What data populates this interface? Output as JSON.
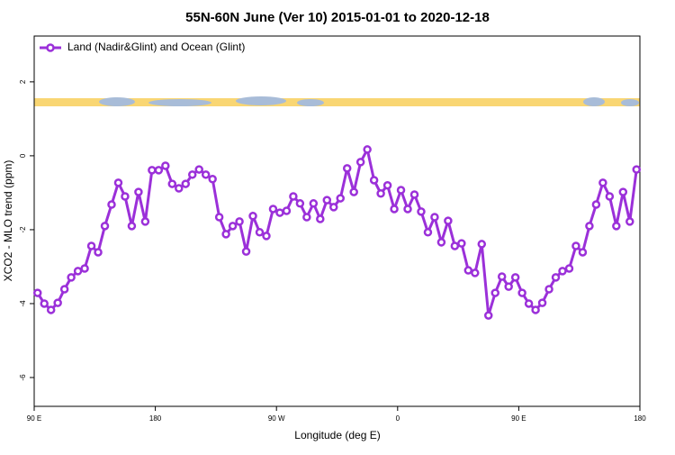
{
  "chart_data": {
    "type": "line",
    "title": "55N-60N June (Ver 10)   2015-01-01 to 2020-12-18",
    "x_label": "Longitude (deg E)",
    "y_label": "XCO2 - MLO trend (ppm)",
    "x": [
      92.5,
      97.5,
      102.5,
      107.5,
      112.5,
      117.5,
      122.5,
      127.5,
      132.5,
      137.5,
      142.5,
      147.5,
      152.5,
      157.5,
      162.5,
      167.5,
      172.5,
      177.5,
      182.5,
      187.5,
      192.5,
      197.5,
      202.5,
      207.5,
      212.5,
      217.5,
      222.5,
      227.5,
      232.5,
      237.5,
      242.5,
      247.5,
      252.5,
      257.5,
      262.5,
      267.5,
      272.5,
      277.5,
      282.5,
      287.5,
      292.5,
      297.5,
      302.5,
      307.5,
      312.5,
      317.5,
      322.5,
      327.5,
      332.5,
      337.5,
      342.5,
      347.5,
      352.5,
      357.5,
      362.5,
      367.5,
      372.5,
      377.5,
      382.5,
      387.5,
      392.5,
      397.5,
      402.5,
      407.5,
      412.5,
      417.5,
      422.5,
      427.5,
      432.5,
      437.5,
      442.5,
      447.5,
      452.5,
      457.5,
      462.5,
      467.5,
      472.5,
      477.5,
      482.5,
      487.5,
      492.5,
      497.5,
      502.5,
      507.5,
      512.5,
      517.5,
      522.5,
      527.5,
      532.5,
      537.5
    ],
    "series": [
      {
        "name": "Land (Nadir&Glint) and Ocean (Glint)",
        "color": "#9b30d9",
        "values": [
          -3.71,
          -4.0,
          -4.17,
          -3.98,
          -3.61,
          -3.29,
          -3.12,
          -3.05,
          -2.44,
          -2.61,
          -1.9,
          -1.32,
          -0.73,
          -1.1,
          -1.9,
          -0.98,
          -1.78,
          -0.39,
          -0.39,
          -0.27,
          -0.76,
          -0.88,
          -0.76,
          -0.51,
          -0.37,
          -0.51,
          -0.63,
          -1.66,
          -2.12,
          -1.9,
          -1.78,
          -2.59,
          -1.63,
          -2.07,
          -2.17,
          -1.44,
          -1.54,
          -1.49,
          -1.1,
          -1.29,
          -1.66,
          -1.29,
          -1.71,
          -1.2,
          -1.39,
          -1.15,
          -0.34,
          -0.98,
          -0.17,
          0.17,
          -0.66,
          -1.02,
          -0.8,
          -1.44,
          -0.93,
          -1.44,
          -1.05,
          -1.51,
          -2.07,
          -1.66,
          -2.34,
          -1.76,
          -2.44,
          -2.37,
          -3.1,
          -3.17,
          -2.39,
          -4.32,
          -3.71,
          -3.27,
          -3.54,
          -3.29,
          -3.71,
          -4.0,
          -4.17,
          -3.98,
          -3.61,
          -3.29,
          -3.12,
          -3.05,
          -2.44,
          -2.61,
          -1.9,
          -1.32,
          -0.73,
          -1.1,
          -1.9,
          -0.98,
          -1.78,
          -0.37
        ]
      }
    ],
    "xlim": [
      90,
      540
    ],
    "xticks": [
      {
        "value": 90,
        "label": "90 E"
      },
      180,
      {
        "value": 270,
        "label": "90 W"
      },
      {
        "value": 360,
        "label": "0"
      },
      {
        "value": 450,
        "label": "90 E"
      },
      {
        "value": 540,
        "label": "180"
      }
    ],
    "ylim": [
      -6.78,
      3.24
    ],
    "yticks": [
      -6,
      -4,
      -2,
      0,
      2
    ],
    "legend": "top-left"
  }
}
